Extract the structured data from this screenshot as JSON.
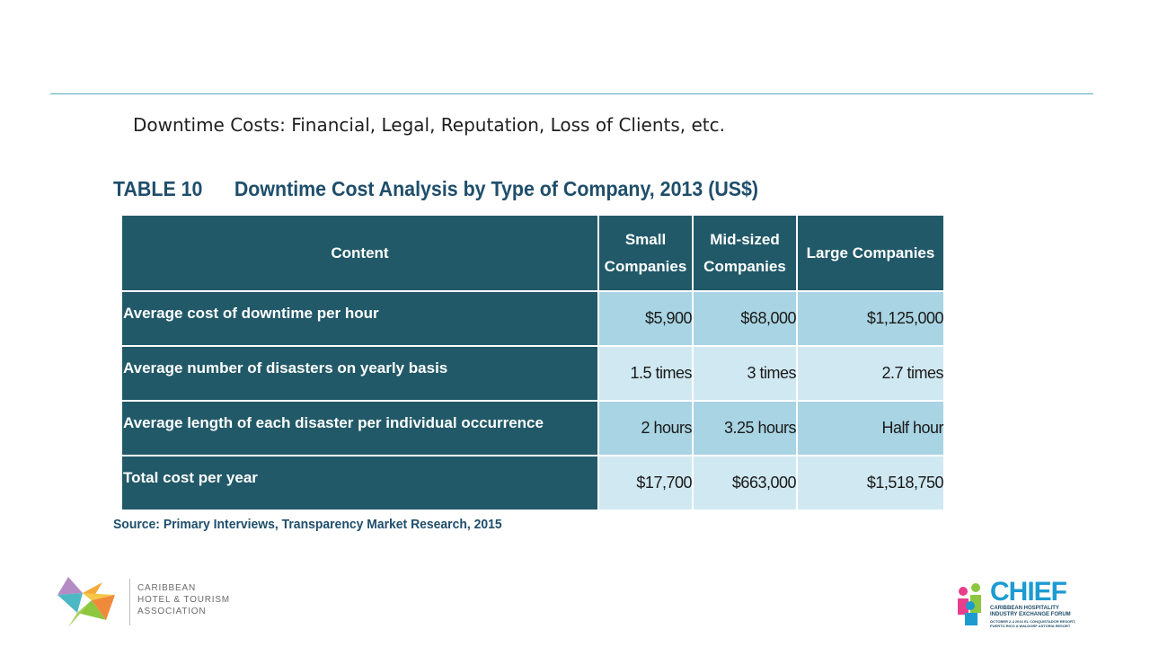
{
  "slide": {
    "title": "Downtime Costs: Financial, Legal, Reputation, Loss of Clients, etc."
  },
  "table": {
    "caption_number": "TABLE 10",
    "caption_title": "Downtime Cost Analysis by Type of Company, 2013 (US$)",
    "headers": {
      "content": "Content",
      "small_line1": "Small",
      "small_line2": "Companies",
      "mid_line1": "Mid-sized",
      "mid_line2": "Companies",
      "large": "Large Companies"
    },
    "rows": [
      {
        "label": "Average cost of downtime per hour",
        "small": "$5,900",
        "mid": "$68,000",
        "large": "$1,125,000"
      },
      {
        "label": "Average number of disasters on yearly basis",
        "small": "1.5 times",
        "mid": "3 times",
        "large": "2.7 times"
      },
      {
        "label": "Average length of each disaster per individual occurrence",
        "small": "2 hours",
        "mid": "3.25 hours",
        "large": "Half  hour"
      },
      {
        "label": "Total cost per year",
        "small": "$17,700",
        "mid": "$663,000",
        "large": "$1,518,750"
      }
    ],
    "source": "Source: Primary Interviews, Transparency Market Research, 2015"
  },
  "logos": {
    "chta": {
      "line1": "CARIBBEAN",
      "line2": "HOTEL & TOURISM",
      "line3": "ASSOCIATION"
    },
    "chief": {
      "word": "CHIEF",
      "sub_line1": "CARIBBEAN HOSPITALITY",
      "sub_line2": "INDUSTRY EXCHANGE FORUM",
      "sub_line3": "OCTOBER 2-4 2016 EL CONQUISTADOR RESORT,",
      "sub_line4": "PUERTO RICO A WALDORF ASTORIA RESORT"
    }
  },
  "colors": {
    "header_bg": "#215968",
    "cell_dark": "#a9d4e3",
    "cell_light": "#d0e8f1",
    "caption_text": "#1f4e6b",
    "rule": "#5aa7bf"
  }
}
